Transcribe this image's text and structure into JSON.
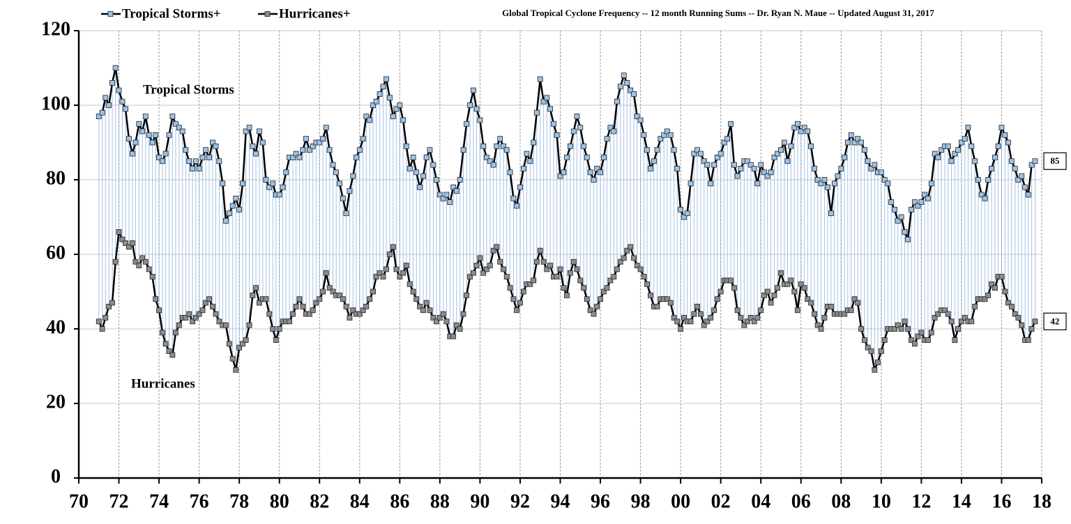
{
  "chart_data": {
    "type": "line",
    "title": "Global Tropical Cyclone Frequency -- 12 month Running Sums -- Dr. Ryan N. Maue -- Updated August 31, 2017",
    "annotations": [
      "Tropical Storms",
      "Hurricanes"
    ],
    "legend": "top-left",
    "grid": true,
    "xlim": [
      1970,
      2018
    ],
    "xticks": [
      {
        "value": 1970,
        "label": "70"
      },
      {
        "value": 1972,
        "label": "72"
      },
      {
        "value": 1974,
        "label": "74"
      },
      {
        "value": 1976,
        "label": "76"
      },
      {
        "value": 1978,
        "label": "78"
      },
      {
        "value": 1980,
        "label": "80"
      },
      {
        "value": 1982,
        "label": "82"
      },
      {
        "value": 1984,
        "label": "84"
      },
      {
        "value": 1986,
        "label": "86"
      },
      {
        "value": 1988,
        "label": "88"
      },
      {
        "value": 1990,
        "label": "90"
      },
      {
        "value": 1992,
        "label": "92"
      },
      {
        "value": 1994,
        "label": "94"
      },
      {
        "value": 1996,
        "label": "96"
      },
      {
        "value": 1998,
        "label": "98"
      },
      {
        "value": 2000,
        "label": "00"
      },
      {
        "value": 2002,
        "label": "02"
      },
      {
        "value": 2004,
        "label": "04"
      },
      {
        "value": 2006,
        "label": "06"
      },
      {
        "value": 2008,
        "label": "08"
      },
      {
        "value": 2010,
        "label": "10"
      },
      {
        "value": 2012,
        "label": "12"
      },
      {
        "value": 2014,
        "label": "14"
      },
      {
        "value": 2016,
        "label": "16"
      },
      {
        "value": 2018,
        "label": "18"
      }
    ],
    "ylim": [
      0,
      120
    ],
    "yticks": [
      0,
      20,
      40,
      60,
      80,
      100,
      120
    ],
    "x": [
      1971,
      1971.17,
      1971.33,
      1971.5,
      1971.67,
      1971.83,
      1972,
      1972.17,
      1972.33,
      1972.5,
      1972.67,
      1972.83,
      1973,
      1973.17,
      1973.33,
      1973.5,
      1973.67,
      1973.83,
      1974,
      1974.17,
      1974.33,
      1974.5,
      1974.67,
      1974.83,
      1975,
      1975.17,
      1975.33,
      1975.5,
      1975.67,
      1975.83,
      1976,
      1976.17,
      1976.33,
      1976.5,
      1976.67,
      1976.83,
      1977,
      1977.17,
      1977.33,
      1977.5,
      1977.67,
      1977.83,
      1978,
      1978.17,
      1978.33,
      1978.5,
      1978.67,
      1978.83,
      1979,
      1979.17,
      1979.33,
      1979.5,
      1979.67,
      1979.83,
      1980,
      1980.17,
      1980.33,
      1980.5,
      1980.67,
      1980.83,
      1981,
      1981.17,
      1981.33,
      1981.5,
      1981.67,
      1981.83,
      1982,
      1982.17,
      1982.33,
      1982.5,
      1982.67,
      1982.83,
      1983,
      1983.17,
      1983.33,
      1983.5,
      1983.67,
      1983.83,
      1984,
      1984.17,
      1984.33,
      1984.5,
      1984.67,
      1984.83,
      1985,
      1985.17,
      1985.33,
      1985.5,
      1985.67,
      1985.83,
      1986,
      1986.17,
      1986.33,
      1986.5,
      1986.67,
      1986.83,
      1987,
      1987.17,
      1987.33,
      1987.5,
      1987.67,
      1987.83,
      1988,
      1988.17,
      1988.33,
      1988.5,
      1988.67,
      1988.83,
      1989,
      1989.17,
      1989.33,
      1989.5,
      1989.67,
      1989.83,
      1990,
      1990.17,
      1990.33,
      1990.5,
      1990.67,
      1990.83,
      1991,
      1991.17,
      1991.33,
      1991.5,
      1991.67,
      1991.83,
      1992,
      1992.17,
      1992.33,
      1992.5,
      1992.67,
      1992.83,
      1993,
      1993.17,
      1993.33,
      1993.5,
      1993.67,
      1993.83,
      1994,
      1994.17,
      1994.33,
      1994.5,
      1994.67,
      1994.83,
      1995,
      1995.17,
      1995.33,
      1995.5,
      1995.67,
      1995.83,
      1996,
      1996.17,
      1996.33,
      1996.5,
      1996.67,
      1996.83,
      1997,
      1997.17,
      1997.33,
      1997.5,
      1997.67,
      1997.83,
      1998,
      1998.17,
      1998.33,
      1998.5,
      1998.67,
      1998.83,
      1999,
      1999.17,
      1999.33,
      1999.5,
      1999.67,
      1999.83,
      2000,
      2000.17,
      2000.33,
      2000.5,
      2000.67,
      2000.83,
      2001,
      2001.17,
      2001.33,
      2001.5,
      2001.67,
      2001.83,
      2002,
      2002.17,
      2002.33,
      2002.5,
      2002.67,
      2002.83,
      2003,
      2003.17,
      2003.33,
      2003.5,
      2003.67,
      2003.83,
      2004,
      2004.17,
      2004.33,
      2004.5,
      2004.67,
      2004.83,
      2005,
      2005.17,
      2005.33,
      2005.5,
      2005.67,
      2005.83,
      2006,
      2006.17,
      2006.33,
      2006.5,
      2006.67,
      2006.83,
      2007,
      2007.17,
      2007.33,
      2007.5,
      2007.67,
      2007.83,
      2008,
      2008.17,
      2008.33,
      2008.5,
      2008.67,
      2008.83,
      2009,
      2009.17,
      2009.33,
      2009.5,
      2009.67,
      2009.83,
      2010,
      2010.17,
      2010.33,
      2010.5,
      2010.67,
      2010.83,
      2011,
      2011.17,
      2011.33,
      2011.5,
      2011.67,
      2011.83,
      2012,
      2012.17,
      2012.33,
      2012.5,
      2012.67,
      2012.83,
      2013,
      2013.17,
      2013.33,
      2013.5,
      2013.67,
      2013.83,
      2014,
      2014.17,
      2014.33,
      2014.5,
      2014.67,
      2014.83,
      2015,
      2015.17,
      2015.33,
      2015.5,
      2015.67,
      2015.83,
      2016,
      2016.17,
      2016.33,
      2016.5,
      2016.67,
      2016.83,
      2017,
      2017.17,
      2017.33,
      2017.5,
      2017.67
    ],
    "series": [
      {
        "name": "Tropical Storms+",
        "color": "#9dc3e6",
        "values": [
          97,
          98,
          102,
          100,
          106,
          110,
          104,
          101,
          99,
          91,
          87,
          90,
          95,
          93,
          97,
          92,
          90,
          92,
          86,
          85,
          87,
          92,
          97,
          95,
          94,
          93,
          88,
          85,
          83,
          85,
          83,
          86,
          88,
          86,
          90,
          89,
          85,
          79,
          69,
          71,
          73,
          75,
          72,
          79,
          93,
          94,
          89,
          87,
          93,
          90,
          80,
          78,
          79,
          76,
          76,
          78,
          82,
          86,
          86,
          87,
          86,
          88,
          91,
          88,
          89,
          90,
          90,
          91,
          94,
          88,
          84,
          82,
          79,
          75,
          71,
          77,
          81,
          86,
          88,
          91,
          97,
          96,
          100,
          101,
          103,
          105,
          107,
          102,
          97,
          99,
          100,
          96,
          89,
          83,
          86,
          82,
          78,
          81,
          86,
          88,
          84,
          80,
          76,
          75,
          76,
          74,
          78,
          77,
          80,
          88,
          95,
          100,
          104,
          99,
          96,
          89,
          86,
          85,
          84,
          89,
          91,
          89,
          88,
          82,
          75,
          73,
          78,
          83,
          87,
          85,
          90,
          98,
          107,
          101,
          102,
          99,
          95,
          92,
          81,
          82,
          86,
          89,
          93,
          97,
          94,
          89,
          86,
          82,
          80,
          83,
          82,
          86,
          91,
          94,
          93,
          101,
          105,
          108,
          106,
          104,
          103,
          97,
          96,
          92,
          88,
          83,
          85,
          88,
          91,
          92,
          93,
          92,
          88,
          83,
          72,
          70,
          71,
          79,
          87,
          88,
          87,
          85,
          84,
          79,
          84,
          86,
          87,
          90,
          91,
          95,
          84,
          81,
          83,
          85,
          85,
          84,
          83,
          79,
          84,
          82,
          81,
          82,
          86,
          87,
          88,
          90,
          85,
          89,
          94,
          95,
          93,
          94,
          93,
          89,
          83,
          80,
          79,
          80,
          78,
          71,
          79,
          81,
          83,
          86,
          90,
          92,
          90,
          91,
          90,
          88,
          85,
          83,
          84,
          82,
          82,
          80,
          79,
          74,
          72,
          69,
          70,
          66,
          64,
          72,
          74,
          73,
          74,
          76,
          75,
          79,
          87,
          86,
          88,
          89,
          89,
          85,
          87,
          88,
          90,
          91,
          94,
          89,
          85,
          80,
          76,
          75,
          80,
          83,
          86,
          89,
          94,
          92,
          90,
          85,
          83,
          80,
          81,
          78,
          76,
          84,
          85
        ]
      },
      {
        "name": "Hurricanes+",
        "color": "#8c8c8c",
        "values": [
          42,
          40,
          43,
          46,
          47,
          58,
          66,
          64,
          63,
          62,
          63,
          58,
          57,
          59,
          58,
          56,
          54,
          48,
          45,
          39,
          36,
          34,
          33,
          39,
          41,
          43,
          43,
          44,
          42,
          43,
          44,
          45,
          47,
          48,
          46,
          44,
          42,
          41,
          41,
          36,
          32,
          29,
          35,
          36,
          37,
          41,
          49,
          51,
          47,
          48,
          48,
          44,
          40,
          37,
          40,
          42,
          42,
          42,
          44,
          46,
          48,
          46,
          44,
          44,
          45,
          47,
          48,
          50,
          55,
          51,
          50,
          49,
          49,
          48,
          46,
          43,
          45,
          44,
          44,
          45,
          46,
          48,
          50,
          54,
          55,
          54,
          56,
          60,
          62,
          56,
          54,
          55,
          57,
          52,
          50,
          48,
          46,
          45,
          47,
          45,
          43,
          42,
          43,
          44,
          42,
          38,
          38,
          41,
          40,
          44,
          49,
          54,
          55,
          57,
          59,
          55,
          56,
          57,
          61,
          62,
          58,
          56,
          54,
          51,
          48,
          45,
          47,
          50,
          52,
          52,
          53,
          58,
          61,
          58,
          56,
          57,
          54,
          54,
          56,
          51,
          49,
          55,
          58,
          56,
          53,
          51,
          48,
          45,
          44,
          46,
          48,
          50,
          51,
          53,
          54,
          56,
          58,
          59,
          61,
          62,
          59,
          57,
          56,
          54,
          52,
          49,
          46,
          46,
          48,
          48,
          48,
          47,
          43,
          42,
          40,
          43,
          42,
          42,
          44,
          46,
          44,
          41,
          42,
          43,
          45,
          48,
          50,
          53,
          53,
          53,
          51,
          45,
          43,
          41,
          42,
          43,
          42,
          43,
          45,
          49,
          50,
          47,
          49,
          51,
          55,
          52,
          52,
          53,
          50,
          45,
          52,
          51,
          48,
          47,
          44,
          41,
          40,
          43,
          46,
          46,
          44,
          44,
          44,
          44,
          45,
          45,
          48,
          47,
          40,
          37,
          35,
          34,
          29,
          31,
          34,
          37,
          40,
          40,
          40,
          41,
          40,
          42,
          40,
          37,
          36,
          38,
          39,
          37,
          37,
          39,
          43,
          44,
          45,
          45,
          44,
          42,
          37,
          40,
          42,
          43,
          42,
          42,
          46,
          48,
          48,
          48,
          49,
          52,
          51,
          54,
          54,
          50,
          47,
          46,
          44,
          43,
          41,
          37,
          37,
          40,
          42
        ]
      }
    ]
  }
}
